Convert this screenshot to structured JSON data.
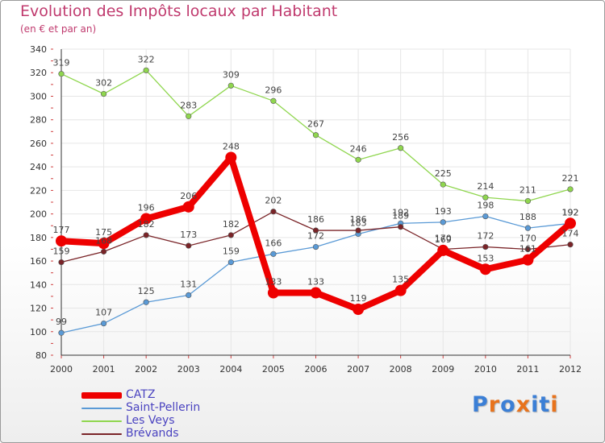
{
  "header": {
    "title": "Evolution des Impôts locaux par Habitant",
    "subtitle": "(en € et par an)"
  },
  "logo": {
    "text": "Proxiti",
    "colors": [
      "#3b7fd6",
      "#e8731c",
      "#3b7fd6",
      "#e8731c",
      "#3b7fd6",
      "#3b7fd6",
      "#e8731c"
    ]
  },
  "chart_data": {
    "type": "line",
    "x": [
      "2000",
      "2001",
      "2002",
      "2003",
      "2004",
      "2005",
      "2006",
      "2007",
      "2008",
      "2009",
      "2010",
      "2011",
      "2012"
    ],
    "ylim": [
      80,
      340
    ],
    "yticks": [
      80,
      100,
      120,
      140,
      160,
      180,
      200,
      220,
      240,
      260,
      280,
      300,
      320,
      340
    ],
    "grid": true,
    "legend_position": "bottom-left",
    "series": [
      {
        "name": "CATZ",
        "color": "#ee0000",
        "values": [
          177,
          175,
          196,
          206,
          248,
          133,
          133,
          119,
          135,
          169,
          153,
          161,
          192
        ]
      },
      {
        "name": "Saint-Pellerin",
        "color": "#5a9ad6",
        "values": [
          99,
          107,
          125,
          131,
          159,
          166,
          172,
          183,
          192,
          193,
          198,
          188,
          192
        ]
      },
      {
        "name": "Les Veys",
        "color": "#8fd64e",
        "values": [
          319,
          302,
          322,
          283,
          309,
          296,
          267,
          246,
          256,
          225,
          214,
          211,
          221
        ]
      },
      {
        "name": "Brévands",
        "color": "#7a2428",
        "values": [
          159,
          168,
          182,
          173,
          182,
          202,
          186,
          186,
          189,
          170,
          172,
          170,
          174
        ]
      }
    ]
  }
}
